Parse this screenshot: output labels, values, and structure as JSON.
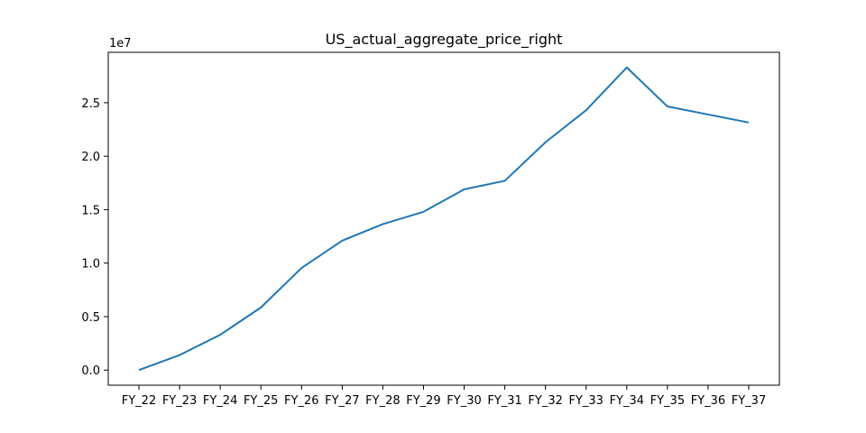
{
  "chart_data": {
    "type": "line",
    "title": "US_actual_aggregate_price_right",
    "xlabel": "",
    "ylabel": "",
    "y_offset_label": "1e7",
    "categories": [
      "FY_22",
      "FY_23",
      "FY_24",
      "FY_25",
      "FY_26",
      "FY_27",
      "FY_28",
      "FY_29",
      "FY_30",
      "FY_31",
      "FY_32",
      "FY_33",
      "FY_34",
      "FY_35",
      "FY_36",
      "FY_37"
    ],
    "series": [
      {
        "color": "#1f77b4",
        "values": [
          0,
          1400000,
          3300000,
          5850000,
          9550000,
          12100000,
          13650000,
          14800000,
          16900000,
          17700000,
          21300000,
          24300000,
          28300000,
          24650000,
          23900000,
          23150000
        ]
      }
    ],
    "yticks": [
      0,
      5000000,
      10000000,
      15000000,
      20000000,
      25000000
    ],
    "ytick_labels": [
      "0.0",
      "0.5",
      "1.0",
      "1.5",
      "2.0",
      "2.5"
    ],
    "ylim": [
      -1415000,
      29715000
    ],
    "grid": false,
    "legend": "none"
  }
}
